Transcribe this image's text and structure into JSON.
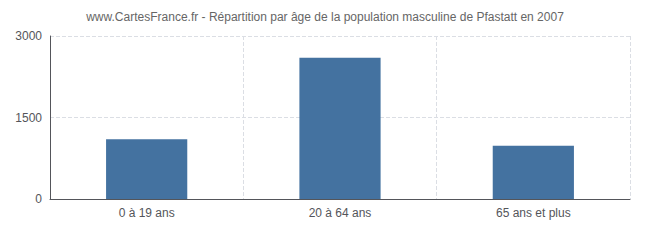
{
  "chart_data": {
    "type": "bar",
    "title": "www.CartesFrance.fr - Répartition par âge de la population masculine de Pfastatt en 2007",
    "categories": [
      "0 à 19 ans",
      "20 à 64 ans",
      "65 ans et plus"
    ],
    "values": [
      1100,
      2600,
      980
    ],
    "color": "#4472a0",
    "ylim": [
      0,
      3000
    ],
    "yticks": [
      0,
      1500,
      3000
    ],
    "grid": true
  }
}
